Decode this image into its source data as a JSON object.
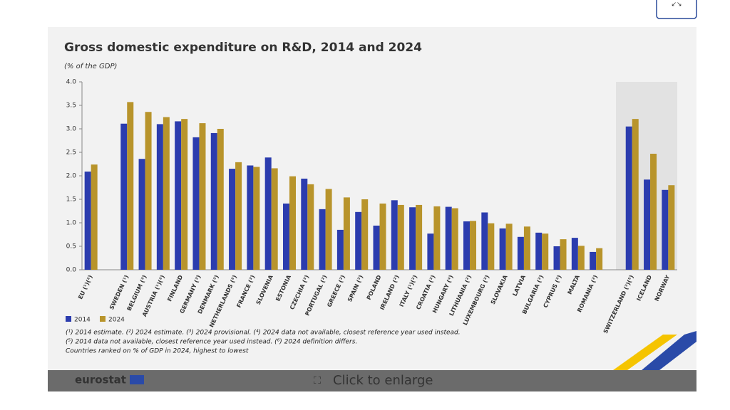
{
  "chart_data": {
    "type": "bar",
    "title": "Gross domestic expenditure on R&D, 2014 and 2024",
    "subtitle": "(% of the GDP)",
    "categories": [
      "EU (¹)(²)",
      null,
      "SWEDEN (¹)",
      "BELGIUM (²)",
      "AUSTRIA (¹)(²)",
      "FINLAND",
      "GERMANY (²)",
      "DENMARK (²)",
      "NETHERLANDS (²)",
      "FRANCE (²)",
      "SLOVENIA",
      "ESTONIA",
      "CZECHIA (²)",
      "PORTUGAL (²)",
      "GREECE (²)",
      "SPAIN (²)",
      "POLAND",
      "IRELAND (²)",
      "ITALY (¹)(²)",
      "CROATIA (²)",
      "HUNGARY (⁴)",
      "LITHUANIA (²)",
      "LUXEMBOURG (²)",
      "SLOVAKIA",
      "LATVIA",
      "BULGARIA (²)",
      "CYPRUS (²)",
      "MALTA",
      "ROMANIA (²)",
      null,
      "SWITZERLAND (³)(⁵)",
      "ICELAND",
      "NORWAY"
    ],
    "series": [
      {
        "name": "2014",
        "color": "#2b3cae",
        "values": [
          2.09,
          null,
          3.11,
          2.36,
          3.1,
          3.16,
          2.82,
          2.91,
          2.15,
          2.22,
          2.39,
          1.41,
          1.94,
          1.29,
          0.85,
          1.23,
          0.94,
          1.48,
          1.33,
          0.77,
          1.34,
          1.03,
          1.22,
          0.88,
          0.7,
          0.79,
          0.5,
          0.68,
          0.38,
          null,
          3.05,
          1.92,
          1.7
        ]
      },
      {
        "name": "2024",
        "color": "#b8942b",
        "values": [
          2.24,
          null,
          3.57,
          3.36,
          3.25,
          3.21,
          3.12,
          3.0,
          2.29,
          2.19,
          2.16,
          1.99,
          1.82,
          1.72,
          1.54,
          1.5,
          1.41,
          1.38,
          1.38,
          1.35,
          1.31,
          1.04,
          0.99,
          0.98,
          0.92,
          0.77,
          0.65,
          0.51,
          0.46,
          null,
          3.21,
          2.47,
          1.8
        ]
      }
    ],
    "ylim": [
      0,
      4
    ],
    "yticks": [
      {
        "value": 0,
        "label": "0.0"
      },
      {
        "value": 0.5,
        "label": "0.5"
      },
      {
        "value": 1,
        "label": "1.0"
      },
      {
        "value": 1.5,
        "label": "1.5"
      },
      {
        "value": 2,
        "label": "2.0"
      },
      {
        "value": 2.5,
        "label": "2.5"
      },
      {
        "value": 3,
        "label": "3.0"
      },
      {
        "value": 3.5,
        "label": "3.5"
      },
      {
        "value": 4,
        "label": "4.0"
      }
    ],
    "grid": false
  },
  "footnotes": [
    "(¹) 2014 estimate. (²) 2024 estimate. (³) 2024 provisional. (⁴) 2024 data not available, closest reference year used instead.",
    "(⁵) 2014 data not available, closest reference year used instead. (⁶) 2024 definition differs.",
    "Countries ranked on % of GDP in 2024, highest to lowest"
  ],
  "logo": "eurostat",
  "enlarge_button": "Click to enlarge"
}
